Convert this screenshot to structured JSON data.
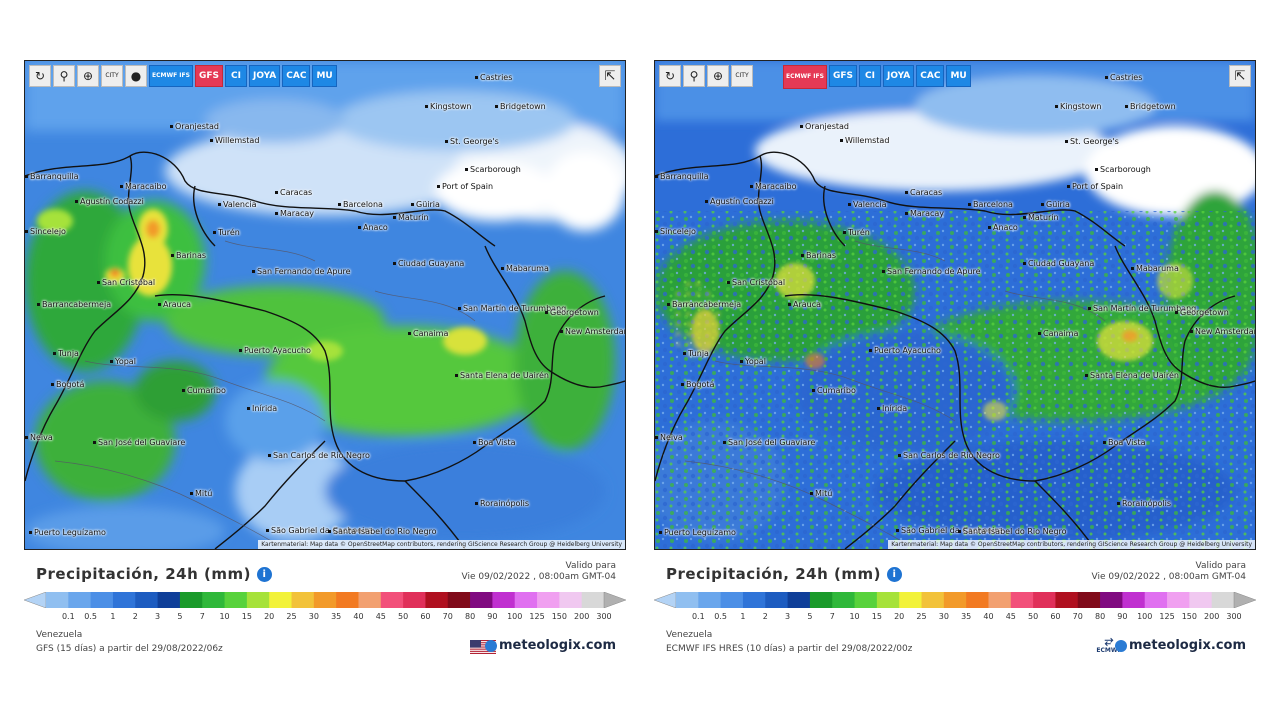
{
  "panels": [
    {
      "id": "gfs",
      "toolbar": {
        "city_label": "CITY",
        "models": [
          {
            "label": "ECMWF IFS",
            "active": false
          },
          {
            "label": "GFS",
            "active": true
          },
          {
            "label": "CI",
            "active": false
          },
          {
            "label": "JOYA",
            "active": false
          },
          {
            "label": "CAC",
            "active": false
          },
          {
            "label": "MU",
            "active": false
          }
        ]
      },
      "attribution": "Kartenmaterial: Map data © OpenStreetMap contributors, rendering GIScience Research Group @ Heidelberg University",
      "legend_title": "Precipitación, 24h (mm)",
      "valid_label": "Valido para",
      "valid_time": "Vie 09/02/2022 , 08:00am GMT-04",
      "region": "Venezuela",
      "run": "GFS (15 días) a partir del 29/08/2022/06z",
      "brand": "meteologix.com"
    },
    {
      "id": "ecmwf",
      "toolbar": {
        "city_label": "CITY",
        "models": [
          {
            "label": "ECMWF IFS",
            "active": true
          },
          {
            "label": "GFS",
            "active": false
          },
          {
            "label": "CI",
            "active": false
          },
          {
            "label": "JOYA",
            "active": false
          },
          {
            "label": "CAC",
            "active": false
          },
          {
            "label": "MU",
            "active": false
          }
        ]
      },
      "attribution": "Kartenmaterial: Map data © OpenStreetMap contributors, rendering GIScience Research Group @ Heidelberg University",
      "legend_title": "Precipitación, 24h (mm)",
      "valid_label": "Valido para",
      "valid_time": "Vie 09/02/2022 , 08:00am GMT-04",
      "region": "Venezuela",
      "run": "ECMWF IFS HRES (10 días) a partir del 29/08/2022/00z",
      "brand": "meteologix.com",
      "logo_text": "ECMWF"
    }
  ],
  "places": [
    {
      "name": "Castries"
    },
    {
      "name": "Kingstown"
    },
    {
      "name": "Bridgetown"
    },
    {
      "name": "Oranjestad"
    },
    {
      "name": "Willemstad"
    },
    {
      "name": "St. George's"
    },
    {
      "name": "Scarborough"
    },
    {
      "name": "Port of Spain"
    },
    {
      "name": "Barranquilla"
    },
    {
      "name": "Maracaibo"
    },
    {
      "name": "Agustín Codazzi"
    },
    {
      "name": "Caracas"
    },
    {
      "name": "Valencia"
    },
    {
      "name": "Maracay"
    },
    {
      "name": "Barcelona"
    },
    {
      "name": "Güiria"
    },
    {
      "name": "Maturín"
    },
    {
      "name": "Anaco"
    },
    {
      "name": "Turén"
    },
    {
      "name": "Barinas"
    },
    {
      "name": "San Cristóbal"
    },
    {
      "name": "Ciudad Guayana"
    },
    {
      "name": "Mabaruma"
    },
    {
      "name": "San Fernando de Apure"
    },
    {
      "name": "Barrancabermeja"
    },
    {
      "name": "Arauca"
    },
    {
      "name": "San Martín de Turumbang"
    },
    {
      "name": "Georgetown"
    },
    {
      "name": "New Amsterdam"
    },
    {
      "name": "Canaima"
    },
    {
      "name": "Tunja"
    },
    {
      "name": "Yopal"
    },
    {
      "name": "Puerto Ayacucho"
    },
    {
      "name": "Bogotá"
    },
    {
      "name": "Cumaribo"
    },
    {
      "name": "Santa Elena de Uairén"
    },
    {
      "name": "Inírida"
    },
    {
      "name": "San José del Guaviare"
    },
    {
      "name": "San Carlos de Río Negro"
    },
    {
      "name": "Boa Vista"
    },
    {
      "name": "Mitú"
    },
    {
      "name": "Rorainópolis"
    },
    {
      "name": "São Gabriel da Cachoeira"
    },
    {
      "name": "Santa Isabel do Rio Negro"
    },
    {
      "name": "Puerto Leguízamo"
    },
    {
      "name": "Neiva"
    },
    {
      "name": "Sincelejo"
    }
  ],
  "legend": {
    "ticks": [
      "0.1",
      "0.5",
      "1",
      "2",
      "3",
      "5",
      "7",
      "10",
      "15",
      "20",
      "25",
      "30",
      "35",
      "40",
      "45",
      "50",
      "60",
      "70",
      "80",
      "90",
      "100",
      "125",
      "150",
      "200",
      "300"
    ],
    "colors": [
      "#b3d3f5",
      "#90bff0",
      "#6aa6ec",
      "#4c8fe6",
      "#2f74d8",
      "#1d5cc0",
      "#0f3f99",
      "#1a9a2a",
      "#2fb83a",
      "#58d23c",
      "#a6e23a",
      "#f2f23a",
      "#f2c23a",
      "#f29a2a",
      "#f27a22",
      "#f2a070",
      "#f2507a",
      "#e0305a",
      "#b01020",
      "#800a1a",
      "#800a80",
      "#c030d0",
      "#e070f0",
      "#f0a0f0",
      "#f0c8f0",
      "#d8d8d8",
      "#b0b0b0"
    ]
  }
}
